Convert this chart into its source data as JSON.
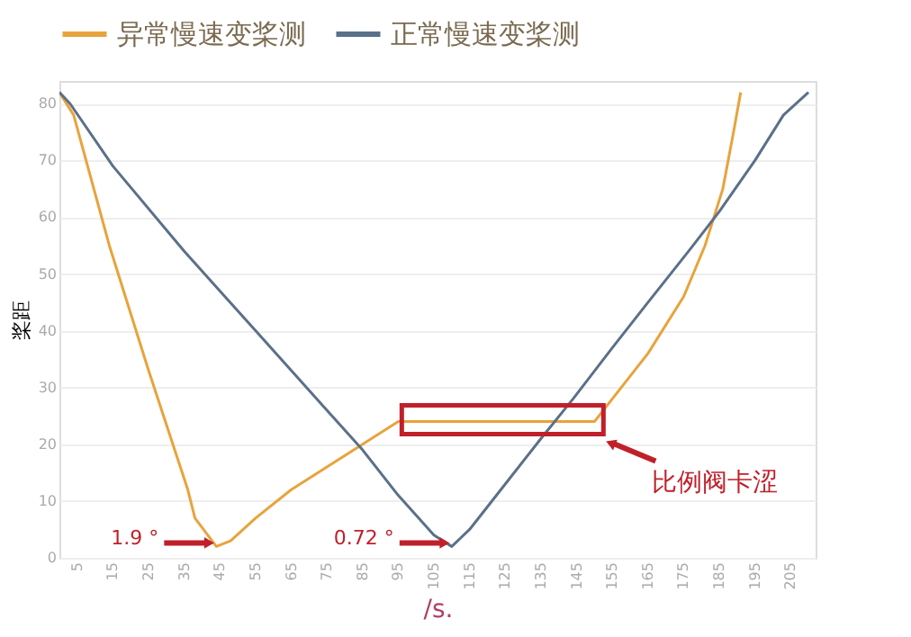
{
  "chart_data": {
    "type": "line",
    "xlabel": "/s.",
    "ylabel": "桨距",
    "legend": "top",
    "grid": "y",
    "marker": "none",
    "line_style": "solid",
    "xlim": [
      0,
      212
    ],
    "ylim": [
      0,
      84
    ],
    "xticks": [
      5,
      15,
      25,
      35,
      45,
      55,
      65,
      75,
      85,
      95,
      105,
      115,
      125,
      135,
      145,
      155,
      165,
      175,
      185,
      195,
      205
    ],
    "yticks": [
      0,
      10,
      20,
      30,
      40,
      50,
      60,
      70,
      80
    ],
    "series": [
      {
        "name": "异常慢速变桨测",
        "color": "#e8a33c",
        "x": [
          0,
          4,
          14,
          25,
          36,
          38,
          44,
          48,
          55,
          65,
          75,
          85,
          95,
          100,
          150,
          155,
          165,
          175,
          181,
          186,
          189,
          191
        ],
        "values": [
          82,
          78,
          55,
          33,
          12,
          7,
          2,
          3,
          7,
          12,
          16,
          20,
          24,
          24,
          24,
          28,
          36,
          46,
          55,
          65,
          75,
          82
        ]
      },
      {
        "name": "正常慢速变桨测",
        "color": "#5b7089",
        "x": [
          0,
          3,
          15,
          35,
          55,
          75,
          85,
          95,
          105,
          110,
          115,
          125,
          135,
          144,
          155,
          165,
          177,
          185,
          195,
          203,
          210
        ],
        "values": [
          82,
          80,
          69,
          54,
          40,
          26,
          19,
          11,
          4,
          2,
          5,
          13,
          21,
          28,
          37,
          45,
          54.5,
          61,
          70,
          78,
          82
        ]
      }
    ],
    "annotations": [
      {
        "text": "1.9 °",
        "x": 44,
        "y": 2
      },
      {
        "text": "0.72 °",
        "x": 110,
        "y": 2
      },
      {
        "text": "比例阀卡涩",
        "x": 150,
        "y": 24
      }
    ]
  }
}
